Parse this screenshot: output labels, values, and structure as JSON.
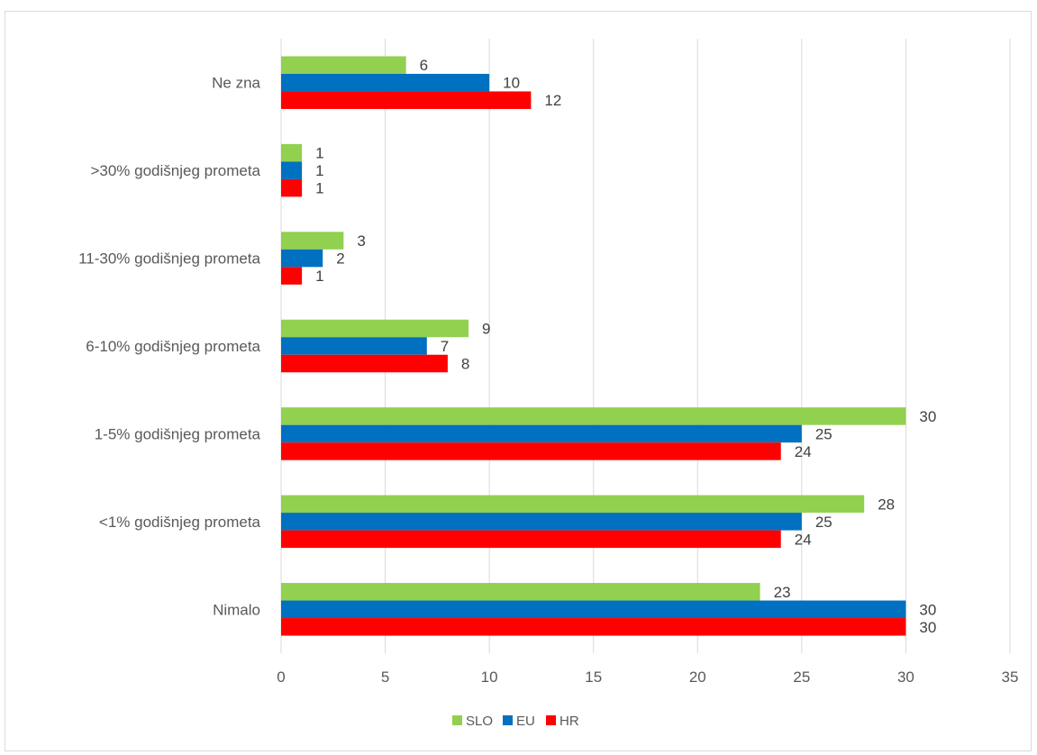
{
  "chart_data": {
    "type": "bar",
    "orientation": "horizontal",
    "categories": [
      "Nimalo",
      "<1% godišnjeg prometa",
      "1-5% godišnjeg prometa",
      "6-10% godišnjeg prometa",
      "11-30% godišnjeg prometa",
      ">30% godišnjeg prometa",
      "Ne zna"
    ],
    "series": [
      {
        "name": "SLO",
        "color": "#92d050",
        "values": [
          23,
          28,
          30,
          9,
          3,
          1,
          6
        ]
      },
      {
        "name": "EU",
        "color": "#0070c0",
        "values": [
          30,
          25,
          25,
          7,
          2,
          1,
          10
        ]
      },
      {
        "name": "HR",
        "color": "#ff0000",
        "values": [
          30,
          24,
          24,
          8,
          1,
          1,
          12
        ]
      }
    ],
    "xlim": [
      0,
      35
    ],
    "xticks": [
      0,
      5,
      10,
      15,
      20,
      25,
      30,
      35
    ],
    "grid": true,
    "data_labels": true,
    "legend_position": "bottom"
  }
}
